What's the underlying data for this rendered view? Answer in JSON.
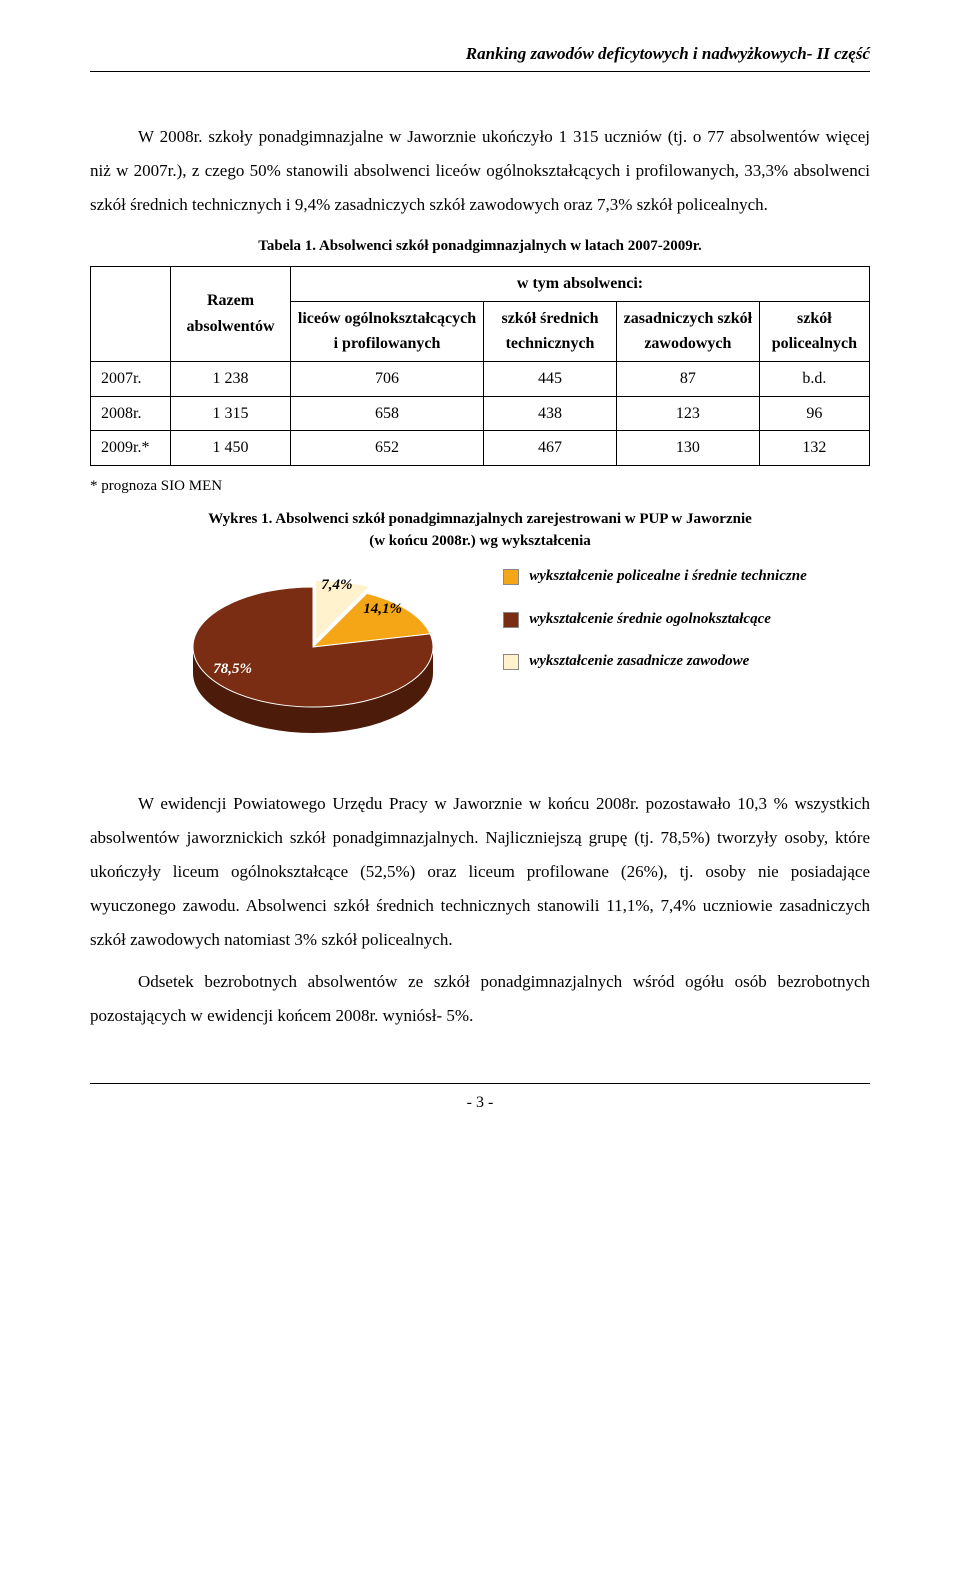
{
  "header": {
    "title": "Ranking zawodów deficytowych i nadwyżkowych- II część"
  },
  "intro": {
    "p1": "W 2008r. szkoły ponadgimnazjalne w Jaworznie ukończyło 1 315 uczniów (tj. o 77 absolwentów więcej niż w 2007r.), z czego 50% stanowili absolwenci liceów ogólnokształcących i profilowanych, 33,3% absolwenci szkół średnich technicznych i 9,4% zasadniczych szkół zawodowych oraz 7,3% szkół policealnych."
  },
  "table1": {
    "caption": "Tabela 1. Absolwenci szkół ponadgimnazjalnych w latach 2007-2009r.",
    "col_razem": "Razem absolwentów",
    "col_wtym": "w tym absolwenci:",
    "cols": {
      "c1": "liceów ogólnokształcących i profilowanych",
      "c2": "szkół średnich technicznych",
      "c3": "zasadniczych szkół zawodowych",
      "c4": "szkół policealnych"
    },
    "rows": [
      {
        "label": "2007r.",
        "razem": "1 238",
        "c1": "706",
        "c2": "445",
        "c3": "87",
        "c4": "b.d."
      },
      {
        "label": "2008r.",
        "razem": "1 315",
        "c1": "658",
        "c2": "438",
        "c3": "123",
        "c4": "96"
      },
      {
        "label": "2009r.*",
        "razem": "1 450",
        "c1": "652",
        "c2": "467",
        "c3": "130",
        "c4": "132"
      }
    ],
    "note": "* prognoza SIO MEN"
  },
  "chart1": {
    "caption_l1": "Wykres 1. Absolwenci szkół ponadgimnazjalnych zarejestrowani w PUP w Jaworznie",
    "caption_l2": "(w końcu 2008r.) wg wykształcenia",
    "type": "pie",
    "slices": [
      {
        "value": 7.4,
        "label": "7,4%",
        "color": "#fff2cc",
        "side_color": "#d9c89a"
      },
      {
        "value": 14.1,
        "label": "14,1%",
        "color": "#f5a616",
        "side_color": "#c47f0a"
      },
      {
        "value": 78.5,
        "label": "78,5%",
        "color": "#7a2d12",
        "side_color": "#4d1b0a"
      }
    ],
    "legend": [
      {
        "color": "#f5a616",
        "text": "wykształcenie policealne i średnie techniczne"
      },
      {
        "color": "#7a2d12",
        "text": "wykształcenie średnie ogolnokształcące"
      },
      {
        "color": "#fff2cc",
        "text": "wykształcenie zasadnicze zawodowe"
      }
    ],
    "background_color": "#ffffff",
    "label_fontsize": 15,
    "explode_index": 0
  },
  "body2": {
    "p1": "W ewidencji Powiatowego Urzędu Pracy w Jaworznie w końcu 2008r. pozostawało 10,3 % wszystkich absolwentów jaworznickich szkół ponadgimnazjalnych. Najliczniejszą grupę (tj. 78,5%) tworzyły osoby, które ukończyły liceum ogólnokształcące (52,5%) oraz liceum profilowane (26%), tj. osoby nie posiadające wyuczonego zawodu. Absolwenci szkół średnich technicznych stanowili 11,1%, 7,4% uczniowie zasadniczych szkół zawodowych natomiast 3% szkół policealnych.",
    "p2": "Odsetek bezrobotnych absolwentów ze szkół ponadgimnazjalnych wśród ogółu osób bezrobotnych pozostających w ewidencji końcem 2008r. wyniósł-  5%."
  },
  "footer": {
    "page": "- 3 -"
  }
}
